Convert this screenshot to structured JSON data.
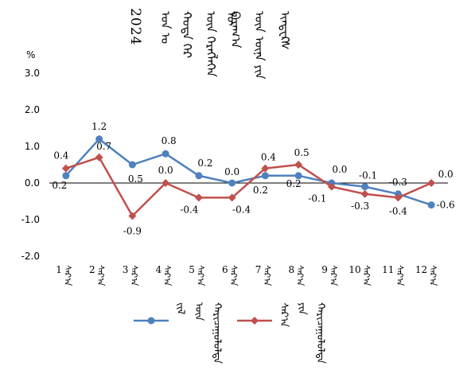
{
  "chart_data": {
    "type": "line",
    "title": "2024",
    "title_lines": [
      "ᠣᠨ ᠤ",
      "ᠬᠣᠲᠠ ᠭᠡᠷ",
      "ᠦᠨ ᠬᠡᠷᠡᠭᠯᠡᠭᠡᠨ ᠦ",
      "ᠪᠠᠷᠠᠭ᠎ᠠ",
      "ᠦᠨ ᠦᠨᠡ ᠶᠢᠨ",
      "ᠢᠨᠳᠧᠺᠰ"
    ],
    "ylabel": "%",
    "ylim": [
      -2.0,
      3.0
    ],
    "yticks": [
      "3.0",
      "2.0",
      "1.0",
      "0.0",
      "-1.0",
      "-2.0"
    ],
    "ytick_values": [
      3.0,
      2.0,
      1.0,
      0.0,
      -1.0,
      -2.0
    ],
    "categories": [
      "1",
      "2",
      "3",
      "4",
      "5",
      "6",
      "7",
      "8",
      "9",
      "10",
      "11",
      "12"
    ],
    "category_suffix": "ᠰᠠᠷ᠎ᠠ",
    "series": [
      {
        "name": "ᠵᠢᠯ ᠦᠨ ᠬᠠᠷᠢᠴᠠᠭᠤᠯᠤᠯᠲᠠ",
        "color": "#4f81bd",
        "marker": "circle",
        "values": [
          0.2,
          1.2,
          0.5,
          0.8,
          0.2,
          0.0,
          0.2,
          0.2,
          0.0,
          -0.1,
          -0.3,
          -0.6
        ],
        "labels": [
          "0.2",
          "1.2",
          "0.5",
          "0.8",
          "0.2",
          "0.0",
          "0.2",
          "0.2",
          "0.0",
          "-0.1",
          "-0.3",
          "-0.6"
        ]
      },
      {
        "name": "ᠰᠠᠷ᠎ᠠ ᠶᠢᠨ ᠬᠠᠷᠢᠴᠠᠭᠤᠯᠤᠯᠲᠠ",
        "color": "#c0504d",
        "marker": "diamond",
        "values": [
          0.4,
          0.7,
          -0.9,
          0.0,
          -0.4,
          -0.4,
          0.4,
          0.5,
          -0.1,
          -0.3,
          -0.4,
          0.0
        ],
        "labels": [
          "0.4",
          "0.7",
          "-0.9",
          "0.0",
          "-0.4",
          "-0.4",
          "0.4",
          "0.5",
          "-0.1",
          "-0.3",
          "-0.4",
          "0.0"
        ]
      }
    ],
    "grid": false,
    "legend": "bottom"
  }
}
